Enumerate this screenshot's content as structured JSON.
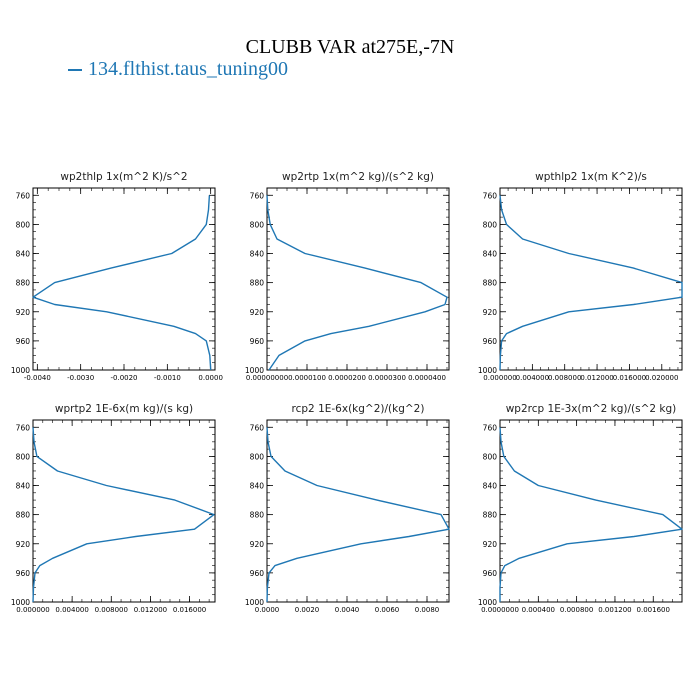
{
  "title": "CLUBB VAR at275E,-7N",
  "legend": {
    "label": "134.flthist.taus_tuning00",
    "color": "#1f77b4"
  },
  "chart_data": [
    {
      "type": "line",
      "title": "wp2thlp  1x(m^2 K)/s^2",
      "y": [
        760,
        780,
        800,
        820,
        840,
        860,
        880,
        900,
        910,
        920,
        940,
        950,
        960,
        980,
        1000
      ],
      "x": [
        -3e-05,
        -5e-05,
        -0.0001,
        -0.00035,
        -0.0009,
        -0.0023,
        -0.0036,
        -0.0041,
        -0.0036,
        -0.0024,
        -0.00085,
        -0.00035,
        -0.0001,
        -2e-05,
        0
      ],
      "xlim": [
        -0.0041,
        0.0001
      ],
      "ylim": [
        1000,
        750
      ],
      "xticks": [
        -0.004,
        -0.003,
        -0.002,
        -0.001,
        0
      ],
      "xtick_labels": [
        "-0.0040",
        "-0.0030",
        "-0.0020",
        "-0.0010",
        "0.0000"
      ],
      "yticks": [
        760,
        800,
        840,
        880,
        920,
        960,
        1000
      ],
      "ytick_labels": [
        "760",
        "800",
        "840",
        "880",
        "920",
        "960",
        "1000"
      ]
    },
    {
      "type": "line",
      "title": "wp2rtp  1x(m^2 kg)/(s^2 kg)",
      "y": [
        760,
        780,
        800,
        820,
        840,
        860,
        880,
        900,
        910,
        920,
        940,
        950,
        960,
        980,
        1000
      ],
      "x": [
        0,
        2e-07,
        8e-07,
        2.5e-06,
        9.5e-06,
        2.45e-05,
        3.85e-05,
        4.5e-05,
        4.45e-05,
        3.95e-05,
        2.55e-05,
        1.6e-05,
        9.5e-06,
        3e-06,
        5e-07
      ],
      "xlim": [
        0,
        4.55e-05
      ],
      "ylim": [
        1000,
        750
      ],
      "xticks": [
        0,
        1e-05,
        2e-05,
        3e-05,
        4e-05
      ],
      "xtick_labels": [
        "0.00000000",
        "0.0000100",
        "0.0000200",
        "0.0000300",
        "0.0000400"
      ],
      "yticks": [
        760,
        800,
        840,
        880,
        920,
        960,
        1000
      ],
      "ytick_labels": [
        "760",
        "800",
        "840",
        "880",
        "920",
        "960",
        "1000"
      ]
    },
    {
      "type": "line",
      "title": "wpthlp2  1x(m K^2)/s",
      "y": [
        760,
        780,
        800,
        820,
        840,
        860,
        880,
        900,
        910,
        920,
        940,
        950,
        960,
        980,
        1000
      ],
      "x": [
        0,
        0.0002,
        0.0008,
        0.0028,
        0.0085,
        0.0165,
        0.0225,
        0.0225,
        0.0165,
        0.0085,
        0.0028,
        0.0008,
        0.0002,
        5e-05,
        0
      ],
      "xlim": [
        0,
        0.0225
      ],
      "ylim": [
        1000,
        750
      ],
      "xticks": [
        0,
        0.004,
        0.008,
        0.012,
        0.016,
        0.02
      ],
      "xtick_labels": [
        "0.000000",
        "0.004000",
        "0.008000",
        "0.012000",
        "0.016000",
        "0.020000"
      ],
      "yticks": [
        760,
        800,
        840,
        880,
        920,
        960,
        1000
      ],
      "ytick_labels": [
        "760",
        "800",
        "840",
        "880",
        "920",
        "960",
        "1000"
      ]
    },
    {
      "type": "line",
      "title": "wprtp2  1E-6x(m kg)/(s kg)",
      "y": [
        760,
        780,
        800,
        820,
        840,
        860,
        880,
        900,
        910,
        920,
        940,
        950,
        960,
        980,
        1000
      ],
      "x": [
        0,
        0.0001,
        0.0004,
        0.0025,
        0.0075,
        0.0145,
        0.0185,
        0.0165,
        0.0105,
        0.0055,
        0.002,
        0.0007,
        0.0002,
        5e-05,
        0
      ],
      "xlim": [
        0,
        0.0186
      ],
      "ylim": [
        1000,
        750
      ],
      "xticks": [
        0,
        0.004,
        0.008,
        0.012,
        0.016
      ],
      "xtick_labels": [
        "0.000000",
        "0.004000",
        "0.008000",
        "0.012000",
        "0.016000"
      ],
      "yticks": [
        760,
        800,
        840,
        880,
        920,
        960,
        1000
      ],
      "ytick_labels": [
        "760",
        "800",
        "840",
        "880",
        "920",
        "960",
        "1000"
      ]
    },
    {
      "type": "line",
      "title": "rcp2  1E-6x(kg^2)/(kg^2)",
      "y": [
        760,
        780,
        800,
        820,
        840,
        860,
        880,
        900,
        910,
        920,
        940,
        950,
        960,
        980,
        1000
      ],
      "x": [
        0,
        5e-05,
        0.0002,
        0.0009,
        0.0025,
        0.0055,
        0.0087,
        0.0091,
        0.0071,
        0.0047,
        0.0015,
        0.0004,
        0.0001,
        2e-05,
        0
      ],
      "xlim": [
        0,
        0.0091
      ],
      "ylim": [
        1000,
        750
      ],
      "xticks": [
        0,
        0.002,
        0.004,
        0.006,
        0.008
      ],
      "xtick_labels": [
        "0.0000",
        "0.0020",
        "0.0040",
        "0.0060",
        "0.0080"
      ],
      "yticks": [
        760,
        800,
        840,
        880,
        920,
        960,
        1000
      ],
      "ytick_labels": [
        "760",
        "800",
        "840",
        "880",
        "920",
        "960",
        "1000"
      ]
    },
    {
      "type": "line",
      "title": "wp2rcp  1E-3x(m^2 kg)/(s^2 kg)",
      "y": [
        760,
        780,
        800,
        820,
        840,
        860,
        880,
        900,
        910,
        920,
        940,
        950,
        960,
        980,
        1000
      ],
      "x": [
        0,
        1e-05,
        4e-05,
        0.00015,
        0.0004,
        0.001,
        0.0017,
        0.0019,
        0.0014,
        0.0007,
        0.0002,
        5e-05,
        1e-05,
        0,
        0
      ],
      "xlim": [
        0,
        0.0019
      ],
      "ylim": [
        1000,
        750
      ],
      "xticks": [
        0,
        0.0004,
        0.0008,
        0.0012,
        0.0016
      ],
      "xtick_labels": [
        "0.0000000",
        "0.000400",
        "0.000800",
        "0.001200",
        "0.001600"
      ],
      "yticks": [
        760,
        800,
        840,
        880,
        920,
        960,
        1000
      ],
      "ytick_labels": [
        "760",
        "800",
        "840",
        "880",
        "920",
        "960",
        "1000"
      ]
    }
  ]
}
